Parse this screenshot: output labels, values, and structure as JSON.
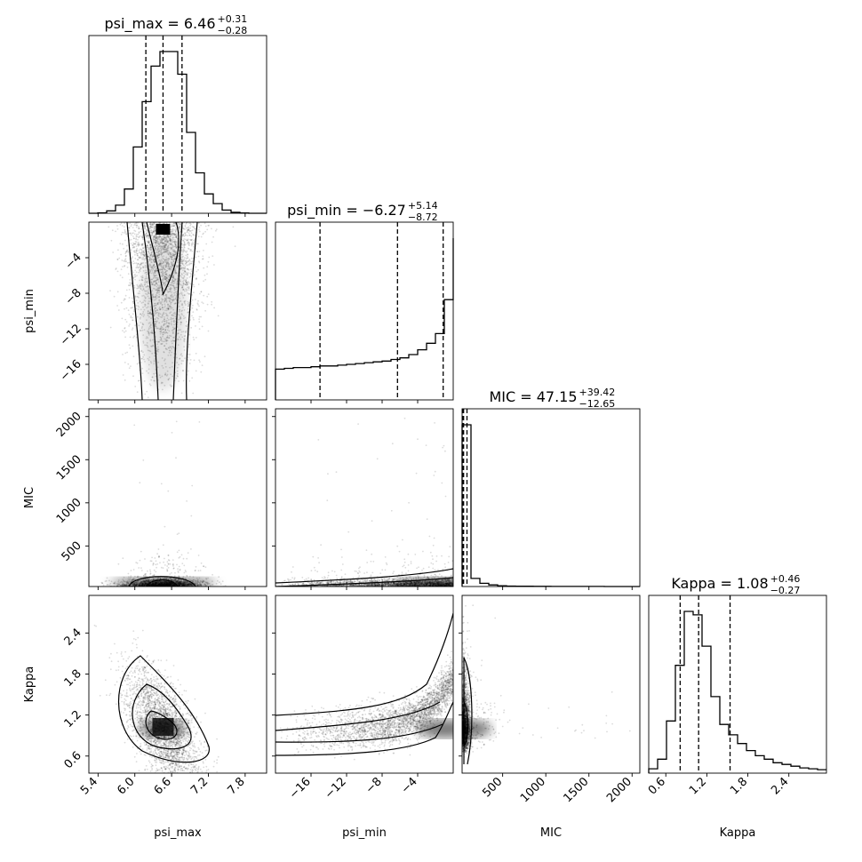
{
  "chart_data": {
    "type": "scatter",
    "variables": [
      {
        "name": "psi_max",
        "label": "psi_max",
        "range": [
          5.25,
          8.15
        ],
        "ticks": [
          5.4,
          6.0,
          6.6,
          7.2,
          7.8
        ],
        "tick_labels": [
          "5.4",
          "6.0",
          "6.6",
          "7.2",
          "7.8"
        ]
      },
      {
        "name": "psi_min",
        "label": "psi_min",
        "range": [
          -20.0,
          0.0
        ],
        "ticks": [
          -16,
          -12,
          -8,
          -4
        ],
        "tick_labels": [
          "−16",
          "−12",
          "−8",
          "−4"
        ]
      },
      {
        "name": "MIC",
        "label": "MIC",
        "range": [
          30,
          2090
        ],
        "ticks": [
          500,
          1000,
          1500,
          2000
        ],
        "tick_labels": [
          "500",
          "1000",
          "1500",
          "2000"
        ]
      },
      {
        "name": "Kappa",
        "label": "Kappa",
        "range": [
          0.35,
          2.95
        ],
        "ticks": [
          0.6,
          1.2,
          1.8,
          2.4
        ],
        "tick_labels": [
          "0.6",
          "1.2",
          "1.8",
          "2.4"
        ]
      }
    ],
    "titles": [
      {
        "text": "psi_max = 6.46",
        "sup": "+0.31",
        "sub": "−0.28"
      },
      {
        "text": "psi_min = −6.27",
        "sup": "+5.14",
        "sub": "−8.72"
      },
      {
        "text": "MIC = 47.15",
        "sup": "+39.42",
        "sub": "−12.65"
      },
      {
        "text": "Kappa = 1.08",
        "sup": "+0.46",
        "sub": "−0.27"
      }
    ],
    "quantiles": [
      [
        6.18,
        6.46,
        6.77
      ],
      [
        -14.99,
        -6.27,
        -1.13
      ],
      [
        34.5,
        47.15,
        86.57
      ],
      [
        0.81,
        1.08,
        1.54
      ]
    ],
    "histograms": [
      {
        "bin_edges": [
          5.25,
          5.395,
          5.54,
          5.685,
          5.83,
          5.975,
          6.12,
          6.265,
          6.41,
          6.555,
          6.7,
          6.845,
          6.99,
          7.135,
          7.28,
          7.425,
          7.57,
          7.715,
          7.86,
          8.005,
          8.15
        ],
        "counts": [
          0,
          0.3,
          1.5,
          5,
          15,
          41,
          69,
          91,
          100,
          100,
          86,
          50,
          25,
          12,
          6,
          2,
          0.6,
          0.2,
          0,
          0
        ]
      },
      {
        "bin_edges": [
          -20,
          -19,
          -18,
          -17,
          -16,
          -15,
          -14,
          -13,
          -12,
          -11,
          -10,
          -9,
          -8,
          -7,
          -6,
          -5,
          -4,
          -3,
          -2,
          -1,
          0
        ],
        "counts": [
          19,
          19.5,
          20,
          20,
          20.5,
          21,
          21,
          21.5,
          22,
          22.5,
          23,
          23.5,
          24,
          25,
          26,
          28,
          31,
          35,
          41,
          62,
          100
        ]
      },
      {
        "bin_edges": [
          30,
          133,
          236,
          339,
          442,
          545,
          648,
          751,
          854,
          957,
          1060,
          1163,
          1266,
          1369,
          1472,
          1575,
          1678,
          1781,
          1884,
          1987,
          2090
        ],
        "counts": [
          100,
          5,
          2,
          1,
          0.5,
          0.3,
          0.2,
          0.15,
          0.1,
          0.1,
          0.05,
          0.05,
          0.05,
          0.03,
          0.03,
          0.03,
          0.02,
          0.02,
          0.01,
          0.01
        ]
      },
      {
        "bin_edges": [
          0.35,
          0.48,
          0.61,
          0.74,
          0.87,
          1.0,
          1.13,
          1.26,
          1.39,
          1.52,
          1.65,
          1.78,
          1.91,
          2.04,
          2.17,
          2.3,
          2.43,
          2.56,
          2.69,
          2.82,
          2.95
        ],
        "counts": [
          2.5,
          8,
          30,
          62,
          93,
          91,
          73,
          44,
          28,
          22,
          17,
          13,
          10,
          8,
          6,
          5,
          4,
          3,
          2.5,
          2
        ]
      }
    ],
    "pair_plots": [
      {
        "x": "psi_max",
        "y": "psi_min",
        "kind": "2d histogram with 3 density contours",
        "density_peak": [
          6.46,
          -1.2
        ]
      },
      {
        "x": "psi_max",
        "y": "MIC",
        "kind": "2d histogram with 3 density contours",
        "density_peak": [
          6.46,
          60
        ]
      },
      {
        "x": "psi_min",
        "y": "MIC",
        "kind": "2d histogram with 3 density contours",
        "density_peak": [
          -1.0,
          60
        ]
      },
      {
        "x": "psi_max",
        "y": "Kappa",
        "kind": "2d histogram with 3 density contours",
        "density_peak": [
          6.46,
          1.0
        ]
      },
      {
        "x": "psi_min",
        "y": "Kappa",
        "kind": "2d histogram with 3 density contours",
        "density_peak": [
          -1.0,
          1.0
        ]
      },
      {
        "x": "MIC",
        "y": "Kappa",
        "kind": "2d histogram with 3 density contours",
        "density_peak": [
          60,
          1.0
        ]
      }
    ],
    "xlabel": [
      "psi_max",
      "psi_min",
      "MIC",
      "Kappa"
    ],
    "ylabel": [
      "psi_min",
      "MIC",
      "Kappa"
    ],
    "grid": false,
    "legend": "none"
  }
}
